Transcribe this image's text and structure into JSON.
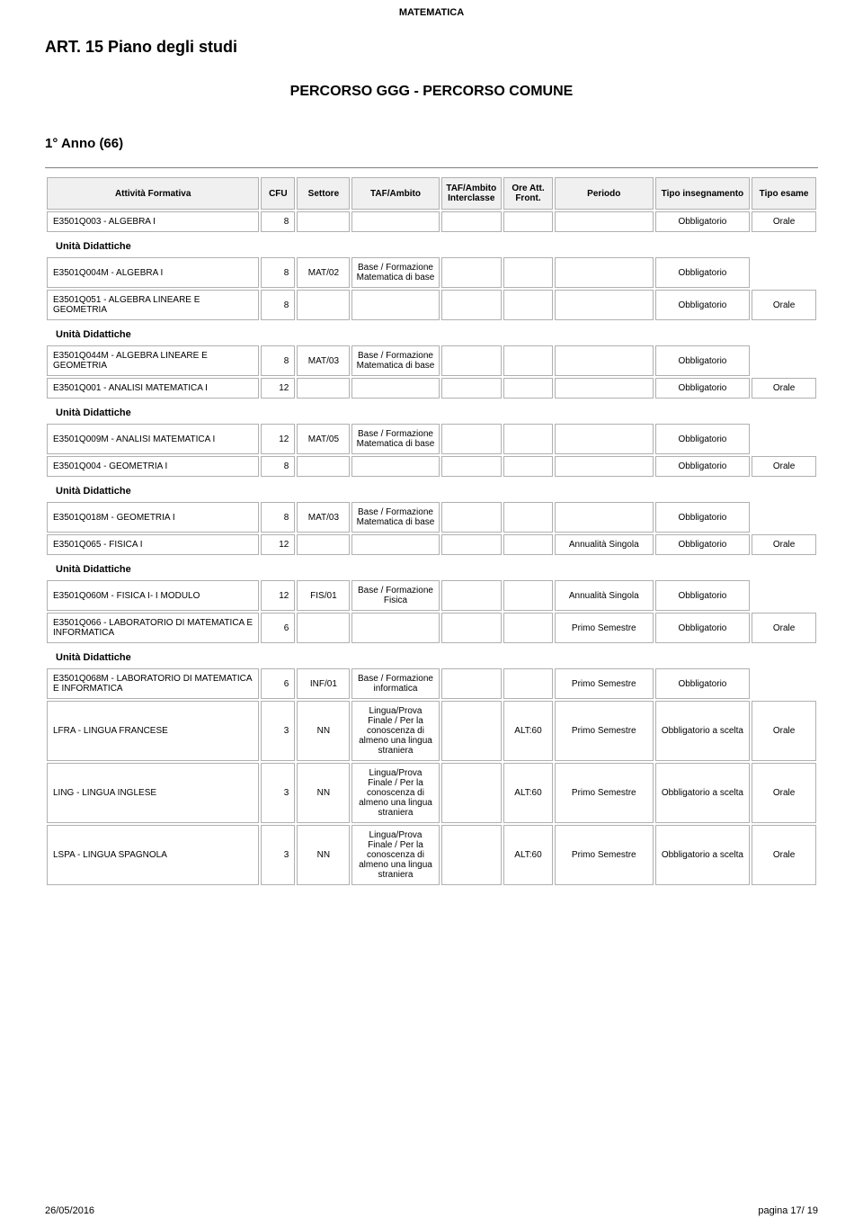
{
  "doc_header": "MATEMATICA",
  "art_title": "ART.    15    Piano degli studi",
  "percorso_title": "PERCORSO GGG - PERCORSO COMUNE",
  "anno_title": "1° Anno (66)",
  "unit_label": "Unità Didattiche",
  "columns": {
    "attivita": "Attività Formativa",
    "cfu": "CFU",
    "settore": "Settore",
    "tafambito": "TAF/Ambito",
    "tafinter": "TAF/Ambito Interclasse",
    "oreatt": "Ore Att. Front.",
    "periodo": "Periodo",
    "tipoins": "Tipo insegnamento",
    "tipoesame": "Tipo esame"
  },
  "taf_labels": {
    "base_formazione_mat": "Base / Formazione Matematica di base",
    "base_formazione_fisica": "Base / Formazione Fisica",
    "base_formazione_inf": "Base / Formazione informatica",
    "lingua": "Lingua/Prova Finale / Per la conoscenza di almeno una lingua straniera"
  },
  "periodo_labels": {
    "annualita": "Annualità Singola",
    "primo": "Primo Semestre"
  },
  "tipo_labels": {
    "obbl": "Obbligatorio",
    "obbl_scelta": "Obbligatorio a scelta"
  },
  "esame_labels": {
    "orale": "Orale"
  },
  "rows": {
    "r1": {
      "name": "E3501Q003 - ALGEBRA I",
      "cfu": "8"
    },
    "r1a": {
      "name": "E3501Q004M - ALGEBRA I",
      "cfu": "8",
      "settore": "MAT/02"
    },
    "r2": {
      "name": "E3501Q051 - ALGEBRA LINEARE E GEOMETRIA",
      "cfu": "8"
    },
    "r2a": {
      "name": "E3501Q044M - ALGEBRA LINEARE E GEOMETRIA",
      "cfu": "8",
      "settore": "MAT/03"
    },
    "r3": {
      "name": "E3501Q001 - ANALISI MATEMATICA I",
      "cfu": "12"
    },
    "r3a": {
      "name": "E3501Q009M - ANALISI MATEMATICA I",
      "cfu": "12",
      "settore": "MAT/05"
    },
    "r4": {
      "name": "E3501Q004 - GEOMETRIA I",
      "cfu": "8"
    },
    "r4a": {
      "name": "E3501Q018M - GEOMETRIA I",
      "cfu": "8",
      "settore": "MAT/03"
    },
    "r5": {
      "name": "E3501Q065 - FISICA I",
      "cfu": "12"
    },
    "r5a": {
      "name": "E3501Q060M - FISICA I- I MODULO",
      "cfu": "12",
      "settore": "FIS/01"
    },
    "r6": {
      "name": "E3501Q066 - LABORATORIO DI MATEMATICA E INFORMATICA",
      "cfu": "6"
    },
    "r6a": {
      "name": "E3501Q068M - LABORATORIO DI MATEMATICA E INFORMATICA",
      "cfu": "6",
      "settore": "INF/01"
    },
    "r7": {
      "name": "LFRA - LINGUA FRANCESE",
      "cfu": "3",
      "settore": "NN",
      "ore": "ALT:60"
    },
    "r8": {
      "name": "LING - LINGUA INGLESE",
      "cfu": "3",
      "settore": "NN",
      "ore": "ALT:60"
    },
    "r9": {
      "name": "LSPA - LINGUA SPAGNOLA",
      "cfu": "3",
      "settore": "NN",
      "ore": "ALT:60"
    }
  },
  "footer": {
    "date": "26/05/2016",
    "page": "pagina 17/ 19"
  }
}
